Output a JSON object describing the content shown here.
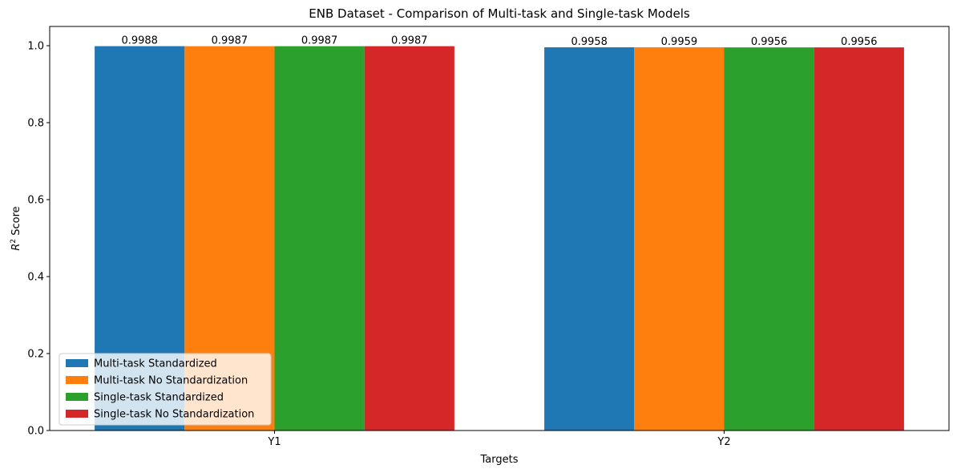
{
  "chart_data": {
    "type": "bar",
    "title": "ENB Dataset - Comparison of Multi-task and Single-task Models",
    "xlabel": "Targets",
    "ylabel_main": "R",
    "ylabel_sup": "2",
    "ylabel_rest": " Score",
    "ylim": [
      0,
      1.05
    ],
    "yticks": [
      0.0,
      0.2,
      0.4,
      0.6,
      0.8,
      1.0
    ],
    "ytick_labels": [
      "0.0",
      "0.2",
      "0.4",
      "0.6",
      "0.8",
      "1.0"
    ],
    "categories": [
      "Y1",
      "Y2"
    ],
    "legend_position": "lower-left",
    "grid": false,
    "series": [
      {
        "name": "Multi-task Standardized",
        "color": "#1f77b4",
        "values": [
          0.9988,
          0.9958
        ],
        "labels": [
          "0.9988",
          "0.9958"
        ]
      },
      {
        "name": "Multi-task No Standardization",
        "color": "#ff7f0e",
        "values": [
          0.9987,
          0.9959
        ],
        "labels": [
          "0.9987",
          "0.9959"
        ]
      },
      {
        "name": "Single-task Standardized",
        "color": "#2ca02c",
        "values": [
          0.9987,
          0.9956
        ],
        "labels": [
          "0.9987",
          "0.9956"
        ]
      },
      {
        "name": "Single-task No Standardization",
        "color": "#d62728",
        "values": [
          0.9987,
          0.9956
        ],
        "labels": [
          "0.9987",
          "0.9956"
        ]
      }
    ]
  }
}
